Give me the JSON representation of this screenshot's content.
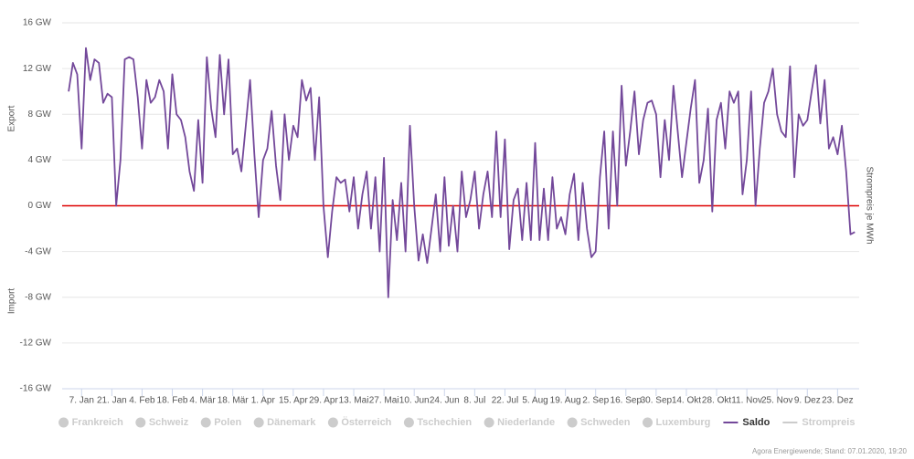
{
  "chart_data": {
    "type": "line",
    "y_title_top": "Export",
    "y_title_bottom": "Import",
    "y2_title": "Strompreis je MWh",
    "credits": "Agora Energiewende; Stand: 07.01.2020, 19:20",
    "x": [
      1,
      3,
      5,
      7,
      9,
      11,
      13,
      15,
      17,
      19,
      21,
      23,
      25,
      27,
      29,
      31,
      33,
      35,
      37,
      39,
      41,
      43,
      45,
      47,
      49,
      51,
      53,
      55,
      57,
      59,
      61,
      63,
      65,
      67,
      69,
      71,
      73,
      75,
      77,
      79,
      81,
      83,
      85,
      87,
      89,
      91,
      93,
      95,
      97,
      99,
      101,
      103,
      105,
      107,
      109,
      111,
      113,
      115,
      117,
      119,
      121,
      123,
      125,
      127,
      129,
      131,
      133,
      135,
      137,
      139,
      141,
      143,
      145,
      147,
      149,
      151,
      153,
      155,
      157,
      159,
      161,
      163,
      165,
      167,
      169,
      171,
      173,
      175,
      177,
      179,
      181,
      183,
      185,
      187,
      189,
      191,
      193,
      195,
      197,
      199,
      201,
      203,
      205,
      207,
      209,
      211,
      213,
      215,
      217,
      219,
      221,
      223,
      225,
      227,
      229,
      231,
      233,
      235,
      237,
      239,
      241,
      243,
      245,
      247,
      249,
      251,
      253,
      255,
      257,
      259,
      261,
      263,
      265,
      267,
      269,
      271,
      273,
      275,
      277,
      279,
      281,
      283,
      285,
      287,
      289,
      291,
      293,
      295,
      297,
      299,
      301,
      303,
      305,
      307,
      309,
      311,
      313,
      315,
      317,
      319,
      321,
      323,
      325,
      327,
      329,
      331,
      333,
      335,
      337,
      339,
      341,
      343,
      345,
      347,
      349,
      351,
      353,
      355,
      357,
      359,
      361,
      363,
      365
    ],
    "series": [
      {
        "name": "Saldo",
        "color": "#73489a",
        "values": [
          10,
          12.5,
          11.5,
          5,
          13.8,
          11,
          12.8,
          12.5,
          9,
          9.8,
          9.5,
          0,
          4,
          12.8,
          13,
          12.8,
          9.5,
          5,
          11,
          9,
          9.5,
          11,
          10,
          5,
          11.5,
          8,
          7.5,
          6,
          3,
          1.3,
          7.5,
          2,
          13,
          8.5,
          6,
          13.2,
          8,
          12.8,
          4.5,
          5,
          3,
          7,
          11,
          4.5,
          -1,
          4,
          5,
          8.3,
          3.5,
          0.5,
          8,
          4,
          7,
          6,
          11,
          9.2,
          10.3,
          4,
          9.5,
          0,
          -4.5,
          -0.5,
          2.5,
          2,
          2.3,
          -0.5,
          2.5,
          -2,
          1,
          3,
          -2,
          2.5,
          -4,
          4.2,
          -8,
          0.5,
          -3,
          2,
          -4,
          7,
          0,
          -4.8,
          -2.5,
          -5,
          -2,
          1,
          -4,
          2.5,
          -3.5,
          0,
          -4,
          3,
          -1,
          0.5,
          3,
          -2,
          1,
          3,
          -1,
          6.5,
          -1,
          5.8,
          -3.8,
          0.5,
          1.5,
          -3,
          2,
          -3,
          5.5,
          -3,
          1.5,
          -3,
          2.5,
          -2,
          -1,
          -2.5,
          1,
          2.8,
          -3,
          2,
          -2,
          -4.5,
          -4,
          2.5,
          6.5,
          -2,
          6.5,
          0,
          10.5,
          3.5,
          6.5,
          10,
          4.5,
          7.5,
          9,
          9.2,
          8,
          2.5,
          7.5,
          4,
          10.5,
          6.5,
          2.5,
          5.5,
          8.5,
          11,
          2,
          4,
          8.5,
          -0.5,
          7.5,
          9,
          5,
          10,
          9,
          10,
          1,
          4,
          10,
          0,
          5,
          9,
          10,
          12,
          8,
          6.5,
          6,
          12.2,
          2.5,
          8,
          7,
          7.5,
          10,
          12.3,
          7.2,
          11,
          5,
          6,
          4.5,
          7,
          3,
          -2.5,
          -2.3
        ]
      }
    ],
    "inactive_legend": [
      "Frankreich",
      "Schweiz",
      "Polen",
      "Dänemark",
      "Österreich",
      "Tschechien",
      "Niederlande",
      "Schweden",
      "Luxemburg"
    ],
    "inactive_line_legend": [
      "Strompreis"
    ],
    "inactive_color": "#cccccc",
    "zero_line": {
      "value": 0,
      "color": "#dd0000"
    },
    "grid": true,
    "xlim": [
      -2,
      367
    ],
    "ylim": [
      -16,
      16
    ],
    "yticks": [
      {
        "value": -16,
        "label": "-16 GW"
      },
      {
        "value": -12,
        "label": "-12 GW"
      },
      {
        "value": -8,
        "label": "-8 GW"
      },
      {
        "value": -4,
        "label": "-4 GW"
      },
      {
        "value": 0,
        "label": "0 GW"
      },
      {
        "value": 4,
        "label": "4 GW"
      },
      {
        "value": 8,
        "label": "8 GW"
      },
      {
        "value": 12,
        "label": "12 GW"
      },
      {
        "value": 16,
        "label": "16 GW"
      }
    ],
    "xticks": [
      {
        "value": 7,
        "label": "7. Jan"
      },
      {
        "value": 21,
        "label": "21. Jan"
      },
      {
        "value": 35,
        "label": "4. Feb"
      },
      {
        "value": 49,
        "label": "18. Feb"
      },
      {
        "value": 63,
        "label": "4. Mär"
      },
      {
        "value": 77,
        "label": "18. Mär"
      },
      {
        "value": 91,
        "label": "1. Apr"
      },
      {
        "value": 105,
        "label": "15. Apr"
      },
      {
        "value": 119,
        "label": "29. Apr"
      },
      {
        "value": 133,
        "label": "13. Mai"
      },
      {
        "value": 147,
        "label": "27. Mai"
      },
      {
        "value": 161,
        "label": "10. Jun"
      },
      {
        "value": 175,
        "label": "24. Jun"
      },
      {
        "value": 189,
        "label": "8. Jul"
      },
      {
        "value": 203,
        "label": "22. Jul"
      },
      {
        "value": 217,
        "label": "5. Aug"
      },
      {
        "value": 231,
        "label": "19. Aug"
      },
      {
        "value": 245,
        "label": "2. Sep"
      },
      {
        "value": 259,
        "label": "16. Sep"
      },
      {
        "value": 273,
        "label": "30. Sep"
      },
      {
        "value": 287,
        "label": "14. Okt"
      },
      {
        "value": 301,
        "label": "28. Okt"
      },
      {
        "value": 315,
        "label": "11. Nov"
      },
      {
        "value": 329,
        "label": "25. Nov"
      },
      {
        "value": 343,
        "label": "9. Dez"
      },
      {
        "value": 357,
        "label": "23. Dez"
      }
    ]
  }
}
